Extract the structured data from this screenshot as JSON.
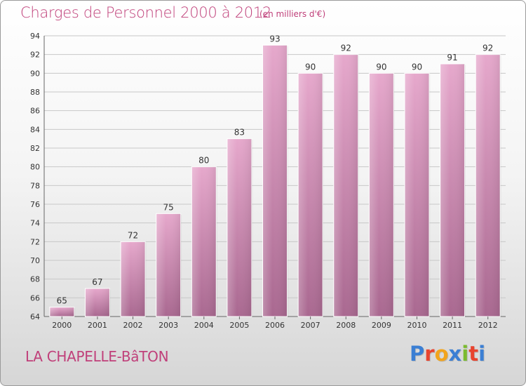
{
  "header": {
    "title": "Charges de Personnel 2000 à 2012",
    "unit_note": "(en milliers d'€)"
  },
  "footer": {
    "commune": "LA CHAPELLE-BâTON",
    "brand": "Proxiti",
    "brand_colors": [
      "#3b7fd4",
      "#e8432e",
      "#f2a41c",
      "#3b7fd4",
      "#7bbb2e",
      "#e8432e",
      "#3b7fd4"
    ]
  },
  "colors": {
    "bar_top": "#e6a8cc",
    "bar_bottom": "#a96890",
    "text": "#c0407a",
    "axis_text": "#333333",
    "grid": "#c8c8c8"
  },
  "chart_data": {
    "type": "bar",
    "title": "Charges de Personnel 2000 à 2012",
    "subtitle": "(en milliers d'€)",
    "xlabel": "",
    "ylabel": "",
    "categories": [
      "2000",
      "2001",
      "2002",
      "2003",
      "2004",
      "2005",
      "2006",
      "2007",
      "2008",
      "2009",
      "2010",
      "2011",
      "2012"
    ],
    "values": [
      65,
      67,
      72,
      75,
      80,
      83,
      93,
      90,
      92,
      90,
      90,
      91,
      92
    ],
    "ylim": [
      64,
      94
    ],
    "yticks": [
      64,
      66,
      68,
      70,
      72,
      74,
      76,
      78,
      80,
      82,
      84,
      86,
      88,
      90,
      92,
      94
    ],
    "grid": true,
    "legend": "none"
  }
}
